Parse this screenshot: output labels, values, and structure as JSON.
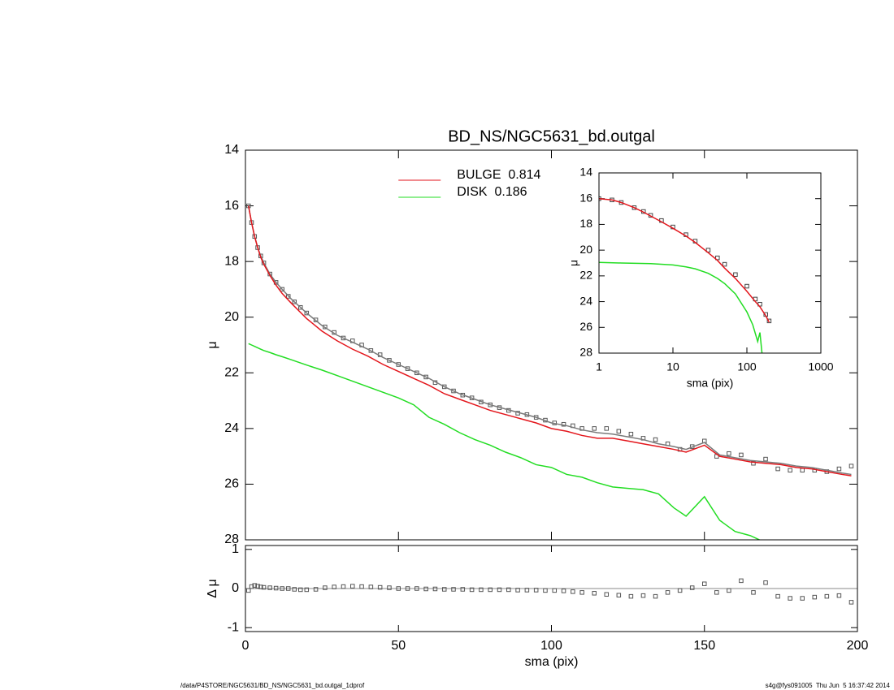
{
  "chart_data": [
    {
      "type": "line",
      "title": "BD_NS/NGC5631_bd.outgal",
      "ylabel": "μ",
      "xlim": [
        0,
        200
      ],
      "xticks": [
        0,
        50,
        100,
        150,
        200
      ],
      "xtick_labels": false,
      "ylim": [
        28,
        14
      ],
      "yticks": [
        14,
        16,
        18,
        20,
        22,
        24,
        26,
        28
      ],
      "legend": "top",
      "series": [
        {
          "style": "points",
          "color": "#555555",
          "x": [
            1,
            2,
            3,
            4,
            5,
            6,
            8,
            10,
            12,
            14,
            16,
            18,
            20,
            23,
            26,
            29,
            32,
            35,
            38,
            41,
            44,
            47,
            50,
            53,
            56,
            59,
            62,
            65,
            68,
            71,
            74,
            77,
            80,
            83,
            86,
            89,
            92,
            95,
            98,
            101,
            104,
            107,
            110,
            114,
            118,
            122,
            126,
            130,
            134,
            138,
            142,
            146,
            150,
            154,
            158,
            162,
            166,
            170,
            174,
            178,
            182,
            186,
            190,
            194,
            198
          ],
          "values": [
            16.0,
            16.6,
            17.1,
            17.5,
            17.8,
            18.05,
            18.45,
            18.75,
            19.0,
            19.25,
            19.45,
            19.65,
            19.85,
            20.1,
            20.35,
            20.55,
            20.75,
            20.85,
            21.0,
            21.2,
            21.35,
            21.55,
            21.7,
            21.85,
            22.0,
            22.15,
            22.35,
            22.5,
            22.65,
            22.8,
            22.9,
            23.05,
            23.15,
            23.25,
            23.35,
            23.45,
            23.5,
            23.6,
            23.7,
            23.8,
            23.85,
            23.9,
            24.0,
            24.0,
            24.0,
            24.1,
            24.2,
            24.35,
            24.4,
            24.55,
            24.75,
            24.65,
            24.45,
            25.0,
            24.9,
            24.95,
            25.25,
            25.1,
            25.45,
            25.5,
            25.5,
            25.5,
            25.55,
            25.45,
            25.35
          ]
        },
        {
          "style": "line",
          "color": "#7a7a7a",
          "x": [
            1,
            2,
            3,
            4,
            5,
            6,
            8,
            10,
            12,
            15,
            20,
            25,
            30,
            35,
            40,
            45,
            50,
            55,
            60,
            65,
            70,
            75,
            80,
            85,
            90,
            95,
            100,
            105,
            110,
            115,
            120,
            125,
            130,
            135,
            140,
            144,
            150,
            155,
            160,
            165,
            170,
            175,
            180,
            185,
            190,
            195,
            198
          ],
          "values": [
            16.0,
            16.6,
            17.1,
            17.5,
            17.8,
            18.05,
            18.45,
            18.75,
            19.0,
            19.35,
            19.85,
            20.3,
            20.65,
            20.9,
            21.15,
            21.45,
            21.7,
            21.95,
            22.2,
            22.5,
            22.75,
            22.95,
            23.15,
            23.3,
            23.45,
            23.6,
            23.8,
            23.9,
            24.05,
            24.15,
            24.2,
            24.3,
            24.4,
            24.55,
            24.65,
            24.75,
            24.5,
            24.95,
            25.05,
            25.15,
            25.2,
            25.25,
            25.35,
            25.4,
            25.5,
            25.6,
            25.65
          ]
        },
        {
          "style": "line",
          "name": "BULGE  0.814",
          "color": "#e3161c",
          "x": [
            1,
            2,
            3,
            4,
            5,
            6,
            8,
            10,
            12,
            15,
            20,
            25,
            30,
            35,
            40,
            45,
            50,
            55,
            60,
            65,
            70,
            75,
            80,
            85,
            90,
            95,
            100,
            105,
            110,
            115,
            120,
            125,
            130,
            135,
            140,
            144,
            150,
            155,
            160,
            165,
            170,
            175,
            180,
            185,
            190,
            195,
            198
          ],
          "values": [
            16.0,
            16.6,
            17.1,
            17.5,
            17.85,
            18.1,
            18.5,
            18.85,
            19.15,
            19.5,
            20.05,
            20.5,
            20.85,
            21.15,
            21.4,
            21.7,
            21.95,
            22.2,
            22.45,
            22.75,
            22.95,
            23.15,
            23.35,
            23.5,
            23.65,
            23.8,
            24.0,
            24.1,
            24.25,
            24.35,
            24.35,
            24.45,
            24.55,
            24.65,
            24.75,
            24.85,
            24.6,
            25.0,
            25.1,
            25.2,
            25.25,
            25.3,
            25.4,
            25.45,
            25.55,
            25.65,
            25.7
          ]
        },
        {
          "style": "line",
          "name": "DISK  0.186",
          "color": "#22dd22",
          "x": [
            1,
            2,
            3,
            4,
            5,
            6,
            8,
            10,
            12,
            15,
            20,
            25,
            30,
            35,
            40,
            45,
            50,
            55,
            60,
            65,
            70,
            75,
            80,
            85,
            90,
            95,
            100,
            105,
            110,
            115,
            120,
            125,
            130,
            135,
            140,
            144,
            150,
            155,
            160,
            165,
            168
          ],
          "values": [
            20.95,
            21.0,
            21.05,
            21.1,
            21.15,
            21.2,
            21.27,
            21.35,
            21.42,
            21.53,
            21.72,
            21.9,
            22.1,
            22.3,
            22.5,
            22.7,
            22.9,
            23.15,
            23.6,
            23.85,
            24.15,
            24.4,
            24.6,
            24.85,
            25.05,
            25.3,
            25.4,
            25.65,
            25.75,
            25.95,
            26.1,
            26.15,
            26.2,
            26.35,
            26.85,
            27.15,
            26.45,
            27.3,
            27.7,
            27.85,
            28.0
          ]
        }
      ]
    },
    {
      "type": "line",
      "ylabel": "Δ μ",
      "xlabel": "sma (pix)",
      "xlim": [
        0,
        200
      ],
      "xticks": [
        0,
        50,
        100,
        150,
        200
      ],
      "ylim": [
        -1.1,
        1.1
      ],
      "yticks": [
        -1,
        0,
        1
      ],
      "reference_line": 0,
      "series": [
        {
          "style": "points",
          "color": "#555555",
          "x": [
            1,
            2,
            3,
            4,
            5,
            6,
            8,
            10,
            12,
            14,
            16,
            18,
            20,
            23,
            26,
            29,
            32,
            35,
            38,
            41,
            44,
            47,
            50,
            53,
            56,
            59,
            62,
            65,
            68,
            71,
            74,
            77,
            80,
            83,
            86,
            89,
            92,
            95,
            98,
            101,
            104,
            107,
            110,
            114,
            118,
            122,
            126,
            130,
            134,
            138,
            142,
            146,
            150,
            154,
            158,
            162,
            166,
            170,
            174,
            178,
            182,
            186,
            190,
            194,
            198
          ],
          "values": [
            -0.05,
            0.05,
            0.08,
            0.06,
            0.04,
            0.03,
            0.02,
            0.01,
            0,
            0,
            -0.02,
            -0.03,
            -0.03,
            -0.02,
            0.02,
            0.04,
            0.05,
            0.06,
            0.05,
            0.04,
            0.03,
            0.02,
            0,
            0,
            0,
            -0.01,
            -0.01,
            -0.02,
            -0.02,
            -0.02,
            -0.03,
            -0.03,
            -0.03,
            -0.03,
            -0.03,
            -0.04,
            -0.04,
            -0.04,
            -0.05,
            -0.05,
            -0.06,
            -0.08,
            -0.1,
            -0.12,
            -0.15,
            -0.17,
            -0.2,
            -0.18,
            -0.2,
            -0.1,
            -0.05,
            0.02,
            0.12,
            -0.1,
            -0.05,
            0.2,
            -0.1,
            0.15,
            -0.2,
            -0.25,
            -0.25,
            -0.22,
            -0.2,
            -0.18,
            -0.35
          ]
        }
      ]
    },
    {
      "type": "line",
      "ylabel": "μ",
      "xlabel": "sma (pix)",
      "xscale": "log",
      "xlim": [
        1,
        1000
      ],
      "xticks": [
        1,
        10,
        100,
        1000
      ],
      "ylim": [
        28,
        14
      ],
      "yticks": [
        14,
        16,
        18,
        20,
        22,
        24,
        26,
        28
      ],
      "series": [
        {
          "style": "points",
          "color": "#444444",
          "x": [
            1,
            1.5,
            2,
            3,
            4,
            5,
            7,
            10,
            15,
            20,
            30,
            40,
            50,
            70,
            100,
            130,
            150,
            180,
            200
          ],
          "values": [
            16.0,
            16.1,
            16.3,
            16.7,
            17.0,
            17.3,
            17.7,
            18.2,
            18.8,
            19.3,
            20.0,
            20.6,
            21.1,
            21.9,
            22.8,
            23.8,
            24.2,
            25.0,
            25.5
          ]
        },
        {
          "style": "line",
          "color": "#e3161c",
          "x": [
            1,
            1.5,
            2,
            3,
            4,
            5,
            7,
            10,
            15,
            20,
            30,
            40,
            50,
            70,
            100,
            130,
            150,
            180,
            200
          ],
          "values": [
            16.0,
            16.1,
            16.3,
            16.7,
            17.05,
            17.35,
            17.8,
            18.3,
            18.9,
            19.4,
            20.2,
            20.8,
            21.4,
            22.2,
            23.2,
            24.0,
            24.4,
            25.1,
            25.6
          ]
        },
        {
          "style": "line",
          "color": "#22dd22",
          "x": [
            1,
            2,
            5,
            10,
            15,
            20,
            30,
            40,
            50,
            70,
            100,
            120,
            140,
            150,
            160
          ],
          "values": [
            20.95,
            21.0,
            21.05,
            21.15,
            21.3,
            21.45,
            21.8,
            22.2,
            22.6,
            23.4,
            24.8,
            25.8,
            27.1,
            26.4,
            28.0
          ]
        }
      ]
    }
  ],
  "footer": {
    "left": "/data/P4STORE/NGC5631/BD_NS/NGC5631_bd.outgal_1dprof",
    "right": "s4g@fys091005  Thu Jun  5 16:37:42 2014"
  }
}
